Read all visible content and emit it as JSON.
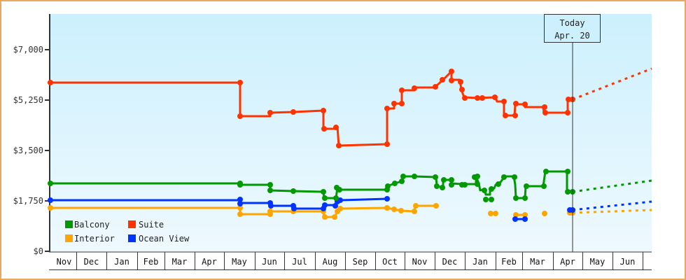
{
  "chart_data": {
    "type": "line",
    "title": "",
    "xlabel": "",
    "ylabel": "",
    "ylim": [
      0,
      8000
    ],
    "yticks": [
      "$0",
      "$1,750",
      "$3,500",
      "$5,250",
      "$7,000"
    ],
    "ytick_values": [
      0,
      1750,
      3500,
      5250,
      7000
    ],
    "categories": [
      "Nov",
      "Dec",
      "Jan",
      "Feb",
      "Mar",
      "Apr",
      "May",
      "Jun",
      "Jul",
      "Aug",
      "Sep",
      "Oct",
      "Nov",
      "Dec",
      "Jan",
      "Feb",
      "Mar",
      "Apr",
      "May",
      "Jun"
    ],
    "grid": false,
    "legend_position": "lower-left inside",
    "annotation": {
      "line1": "Today",
      "line2": "Apr. 20"
    },
    "series": [
      {
        "name": "Suite",
        "color": "#ff3300",
        "points": [
          [
            "Nov start",
            5900
          ],
          [
            "May start",
            5900
          ],
          [
            "May start",
            4800
          ],
          [
            "Jun",
            4800
          ],
          [
            "Jun",
            4900
          ],
          [
            "Jul",
            4950
          ],
          [
            "Aug",
            4950
          ],
          [
            "Aug",
            4300
          ],
          [
            "Aug",
            4300
          ],
          [
            "Aug",
            4400
          ],
          [
            "Aug",
            3700
          ],
          [
            "Oct",
            3700
          ],
          [
            "Oct",
            5000
          ],
          [
            "Oct",
            5200
          ],
          [
            "Oct",
            5200
          ],
          [
            "Oct",
            5650
          ],
          [
            "Nov",
            5650
          ],
          [
            "Nov",
            5700
          ],
          [
            "Dec",
            5750
          ],
          [
            "Dec",
            5900
          ],
          [
            "Dec",
            6200
          ],
          [
            "Dec",
            5950
          ],
          [
            "Jan",
            5400
          ],
          [
            "Jan",
            5350
          ],
          [
            "Feb",
            5300
          ],
          [
            "Feb",
            4800
          ],
          [
            "Feb",
            5150
          ],
          [
            "Mar",
            5050
          ],
          [
            "Mar",
            4850
          ],
          [
            "Apr",
            4850
          ],
          [
            "Apr 20",
            5300
          ]
        ],
        "projection": [
          [
            "Apr 20",
            5300
          ],
          [
            "Jun end",
            6300
          ]
        ]
      },
      {
        "name": "Balcony",
        "color": "#009900",
        "points": [
          [
            "Nov start",
            2350
          ],
          [
            "May start",
            2350
          ],
          [
            "May start",
            2300
          ],
          [
            "Jun",
            2300
          ],
          [
            "Jun",
            2150
          ],
          [
            "Jul",
            2150
          ],
          [
            "Aug",
            2100
          ],
          [
            "Aug",
            1850
          ],
          [
            "Aug",
            1850
          ],
          [
            "Aug",
            2200
          ],
          [
            "Aug",
            2200
          ],
          [
            "Oct",
            2200
          ],
          [
            "Oct",
            2350
          ],
          [
            "Oct",
            2450
          ],
          [
            "Oct",
            2600
          ],
          [
            "Nov",
            2600
          ],
          [
            "Dec",
            2600
          ],
          [
            "Dec",
            2250
          ],
          [
            "Dec",
            2500
          ],
          [
            "Dec",
            2350
          ],
          [
            "Jan",
            2300
          ],
          [
            "Jan",
            2600
          ],
          [
            "Jan",
            2100
          ],
          [
            "Jan",
            2250
          ],
          [
            "Jan",
            1850
          ],
          [
            "Jan",
            2250
          ],
          [
            "Feb",
            2350
          ],
          [
            "Feb",
            2600
          ],
          [
            "Feb",
            2600
          ],
          [
            "Feb",
            1850
          ],
          [
            "Feb",
            1850
          ],
          [
            "Mar",
            2250
          ],
          [
            "Mar",
            2250
          ],
          [
            "Mar",
            2800
          ],
          [
            "Apr",
            2800
          ],
          [
            "Apr 20",
            2050
          ]
        ],
        "projection": [
          [
            "Apr 20",
            2050
          ],
          [
            "Jun end",
            2450
          ]
        ]
      },
      {
        "name": "Ocean View",
        "color": "#0033ff",
        "points": [
          [
            "Nov start",
            1800
          ],
          [
            "May start",
            1800
          ],
          [
            "May start",
            1700
          ],
          [
            "Jun",
            1700
          ],
          [
            "Jun",
            1600
          ],
          [
            "Jul",
            1550
          ],
          [
            "Aug",
            1550
          ],
          [
            "Aug",
            1600
          ],
          [
            "Aug",
            1650
          ],
          [
            "Aug",
            1800
          ],
          [
            "Oct",
            1800
          ]
        ],
        "isolated": [
          [
            "Feb",
            1150
          ],
          [
            "Feb",
            1150
          ],
          [
            "Apr 20",
            1450
          ]
        ],
        "projection": [
          [
            "Apr 20",
            1450
          ],
          [
            "Jun end",
            1750
          ]
        ]
      },
      {
        "name": "Interior",
        "color": "#ffa500",
        "points": [
          [
            "Nov start",
            1550
          ],
          [
            "May start",
            1550
          ],
          [
            "May start",
            1350
          ],
          [
            "Jun",
            1350
          ],
          [
            "Jun",
            1400
          ],
          [
            "Jul",
            1400
          ],
          [
            "Aug",
            1400
          ],
          [
            "Aug",
            1250
          ],
          [
            "Aug",
            1250
          ],
          [
            "Aug",
            1400
          ],
          [
            "Aug",
            1550
          ],
          [
            "Oct",
            1550
          ],
          [
            "Oct",
            1500
          ],
          [
            "Oct",
            1450
          ],
          [
            "Nov",
            1450
          ],
          [
            "Nov",
            1600
          ],
          [
            "Nov",
            1600
          ]
        ],
        "isolated": [
          [
            "Jan",
            1350
          ],
          [
            "Jan",
            1350
          ],
          [
            "Feb",
            1300
          ],
          [
            "Feb",
            1300
          ],
          [
            "Mar",
            1350
          ],
          [
            "Apr 20",
            1350
          ]
        ],
        "projection": [
          [
            "Apr 20",
            1350
          ],
          [
            "Jun end",
            1450
          ]
        ]
      }
    ]
  },
  "legend": [
    {
      "label": "Balcony",
      "color": "#009900"
    },
    {
      "label": "Suite",
      "color": "#ff3300"
    },
    {
      "label": "Interior",
      "color": "#ffa500"
    },
    {
      "label": "Ocean View",
      "color": "#0033ff"
    }
  ],
  "yaxis": {
    "labels": [
      "$0",
      "$1,750",
      "$3,500",
      "$5,250",
      "$7,000"
    ]
  },
  "xaxis": {
    "months": [
      "Nov",
      "Dec",
      "Jan",
      "Feb",
      "Mar",
      "Apr",
      "May",
      "Jun",
      "Jul",
      "Aug",
      "Sep",
      "Oct",
      "Nov",
      "Dec",
      "Jan",
      "Feb",
      "Mar",
      "Apr",
      "May",
      "Jun"
    ]
  },
  "today": {
    "line1": "Today",
    "line2": "Apr. 20"
  }
}
